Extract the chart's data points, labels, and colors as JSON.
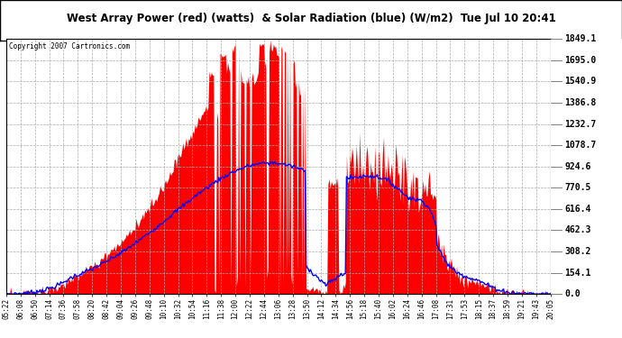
{
  "title": "West Array Power (red) (watts)  & Solar Radiation (blue) (W/m2)  Tue Jul 10 20:41",
  "copyright": "Copyright 2007 Cartronics.com",
  "ymax": 1849.1,
  "yticks": [
    0.0,
    154.1,
    308.2,
    462.3,
    616.4,
    770.5,
    924.6,
    1078.7,
    1232.7,
    1386.8,
    1540.9,
    1695.0,
    1849.1
  ],
  "bg_color": "#ffffff",
  "plot_bg": "#ffffff",
  "grid_color": "#aaaaaa",
  "red_color": "#ff0000",
  "blue_color": "#0000ff",
  "xtick_labels": [
    "05:22",
    "06:08",
    "06:50",
    "07:14",
    "07:36",
    "07:58",
    "08:20",
    "08:42",
    "09:04",
    "09:26",
    "09:48",
    "10:10",
    "10:32",
    "10:54",
    "11:16",
    "11:38",
    "12:00",
    "12:22",
    "12:44",
    "13:06",
    "13:28",
    "13:50",
    "14:12",
    "14:34",
    "14:56",
    "15:18",
    "15:40",
    "16:02",
    "16:24",
    "16:46",
    "17:08",
    "17:31",
    "17:53",
    "18:15",
    "18:37",
    "18:59",
    "19:21",
    "19:43",
    "20:05"
  ]
}
